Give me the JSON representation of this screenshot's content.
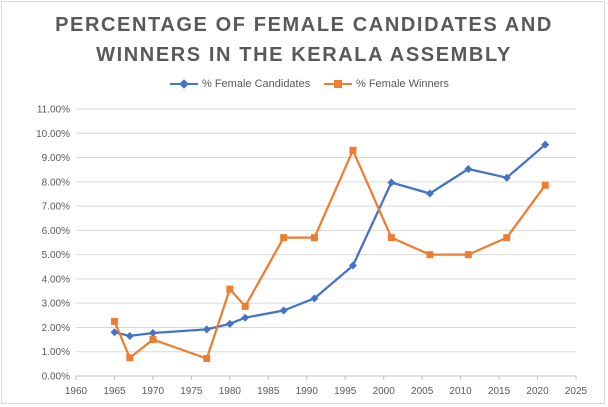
{
  "chart_data": {
    "type": "line",
    "title": "PERCENTAGE OF FEMALE CANDIDATES AND WINNERS IN THE KERALA ASSEMBLY",
    "title_lines": [
      "PERCENTAGE OF FEMALE CANDIDATES AND",
      "WINNERS IN THE KERALA ASSEMBLY"
    ],
    "xlabel": "",
    "ylabel": "",
    "xlim": [
      1960,
      2025
    ],
    "ylim": [
      0,
      0.11
    ],
    "x_ticks": [
      1960,
      1965,
      1970,
      1975,
      1980,
      1985,
      1990,
      1995,
      2000,
      2005,
      2010,
      2015,
      2020,
      2025
    ],
    "y_ticks": [
      "0.00%",
      "1.00%",
      "2.00%",
      "3.00%",
      "4.00%",
      "5.00%",
      "6.00%",
      "7.00%",
      "8.00%",
      "9.00%",
      "10.00%",
      "11.00%"
    ],
    "grid": "horizontal",
    "legend_position": "top",
    "series": [
      {
        "name": "% Female Candidates",
        "color": "#4472c4",
        "marker": "diamond",
        "x": [
          1965,
          1967,
          1970,
          1977,
          1980,
          1982,
          1987,
          1991,
          1996,
          2001,
          2006,
          2011,
          2016,
          2021
        ],
        "y": [
          0.018,
          0.0165,
          0.0177,
          0.0192,
          0.0215,
          0.024,
          0.027,
          0.032,
          0.0455,
          0.0797,
          0.0752,
          0.0853,
          0.0817,
          0.0953
        ]
      },
      {
        "name": "% Female Winners",
        "color": "#ed7d31",
        "marker": "square",
        "x": [
          1965,
          1967,
          1970,
          1977,
          1980,
          1982,
          1987,
          1991,
          1996,
          2001,
          2006,
          2011,
          2016,
          2021
        ],
        "y": [
          0.0225,
          0.0075,
          0.015,
          0.0072,
          0.0358,
          0.0287,
          0.057,
          0.057,
          0.093,
          0.057,
          0.05,
          0.05,
          0.057,
          0.0786
        ]
      }
    ]
  }
}
